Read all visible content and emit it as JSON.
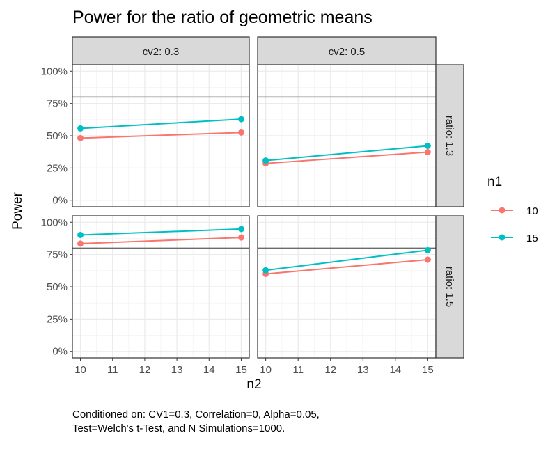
{
  "chart_data": {
    "type": "line",
    "title": "Power for the ratio of geometric means",
    "xlabel": "n2",
    "ylabel": "Power",
    "x_ticks": [
      10,
      11,
      12,
      13,
      14,
      15
    ],
    "y_ticks": [
      "0%",
      "25%",
      "50%",
      "75%",
      "100%"
    ],
    "y_tick_values": [
      0,
      0.25,
      0.5,
      0.75,
      1.0
    ],
    "xlim": [
      9.75,
      15.25
    ],
    "ylim": [
      -0.05,
      1.05
    ],
    "reference_line": 0.8,
    "grid": true,
    "legend": {
      "title": "n1",
      "placement": "right"
    },
    "series_colors": {
      "10": "#F8766D",
      "15": "#00BFC4"
    },
    "facets": [
      {
        "col": "cv2: 0.3",
        "row": "ratio: 1.3",
        "series": [
          {
            "name": "10",
            "x": [
              10,
              15
            ],
            "y": [
              0.482,
              0.525
            ]
          },
          {
            "name": "15",
            "x": [
              10,
              15
            ],
            "y": [
              0.557,
              0.629
            ]
          }
        ]
      },
      {
        "col": "cv2: 0.5",
        "row": "ratio: 1.3",
        "series": [
          {
            "name": "10",
            "x": [
              10,
              15
            ],
            "y": [
              0.286,
              0.373
            ]
          },
          {
            "name": "15",
            "x": [
              10,
              15
            ],
            "y": [
              0.308,
              0.422
            ]
          }
        ]
      },
      {
        "col": "cv2: 0.3",
        "row": "ratio: 1.5",
        "series": [
          {
            "name": "10",
            "x": [
              10,
              15
            ],
            "y": [
              0.835,
              0.882
            ]
          },
          {
            "name": "15",
            "x": [
              10,
              15
            ],
            "y": [
              0.902,
              0.948
            ]
          }
        ]
      },
      {
        "col": "cv2: 0.5",
        "row": "ratio: 1.5",
        "series": [
          {
            "name": "10",
            "x": [
              10,
              15
            ],
            "y": [
              0.6,
              0.71
            ]
          },
          {
            "name": "15",
            "x": [
              10,
              15
            ],
            "y": [
              0.628,
              0.784
            ]
          }
        ]
      }
    ],
    "col_strips": [
      "cv2: 0.3",
      "cv2: 0.5"
    ],
    "row_strips": [
      "ratio: 1.3",
      "ratio: 1.5"
    ],
    "caption": [
      "Conditioned on: CV1=0.3, Correlation=0, Alpha=0.05,",
      "Test=Welch's t-Test, and N Simulations=1000."
    ]
  }
}
